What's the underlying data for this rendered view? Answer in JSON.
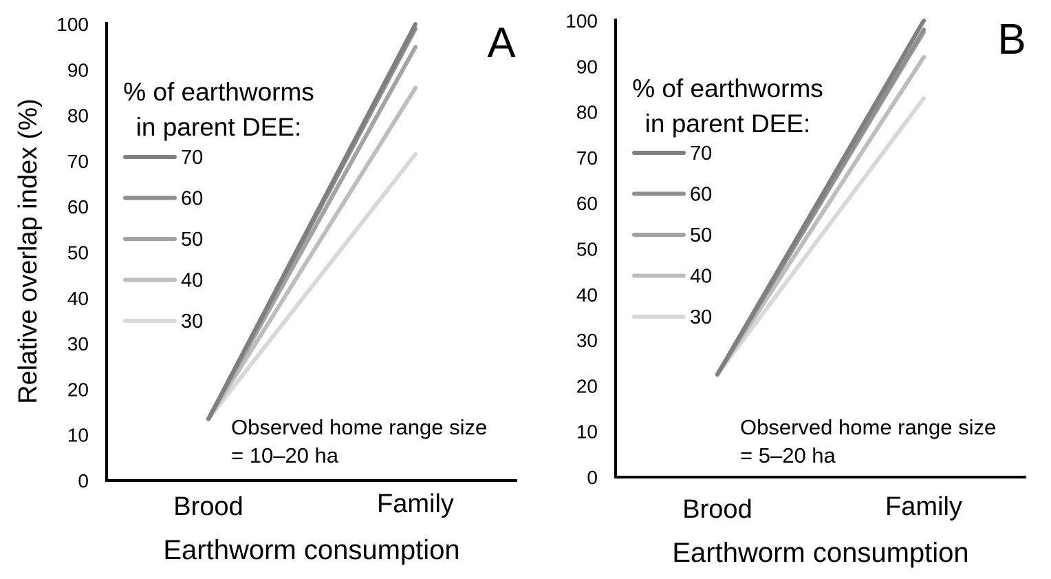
{
  "y_axis_label": "Relative overlap index (%)",
  "legend_title_line1": "% of earthworms",
  "legend_title_line2": "in parent DEE:",
  "chart_data": [
    {
      "type": "line",
      "panel_label": "A",
      "categories": [
        "Brood",
        "Family"
      ],
      "xlabel": "Earthworm consumption",
      "ylabel": "Relative overlap index (%)",
      "ylim": [
        0,
        100
      ],
      "yticks": [
        0,
        10,
        20,
        30,
        40,
        50,
        60,
        70,
        80,
        90,
        100
      ],
      "legend_title": "% of earthworms in parent DEE:",
      "legend_placement": "top-left",
      "annotation_line1": "Observed home range size",
      "annotation_line2": "= 10–20 ha",
      "series": [
        {
          "name": "70",
          "color": "#7f7f7f",
          "values": [
            13.5,
            100
          ]
        },
        {
          "name": "60",
          "color": "#8f8f8f",
          "values": [
            13.5,
            99
          ]
        },
        {
          "name": "50",
          "color": "#a3a3a3",
          "values": [
            13.5,
            95
          ]
        },
        {
          "name": "40",
          "color": "#bdbdbd",
          "values": [
            13.5,
            86
          ]
        },
        {
          "name": "30",
          "color": "#d8d8d8",
          "values": [
            13.5,
            71.5
          ]
        }
      ]
    },
    {
      "type": "line",
      "panel_label": "B",
      "categories": [
        "Brood",
        "Family"
      ],
      "xlabel": "Earthworm consumption",
      "ylabel": "",
      "ylim": [
        0,
        100
      ],
      "yticks": [
        0,
        10,
        20,
        30,
        40,
        50,
        60,
        70,
        80,
        90,
        100
      ],
      "legend_title": "% of earthworms in parent DEE:",
      "legend_placement": "top-left",
      "annotation_line1": "Observed home range size",
      "annotation_line2": "= 5–20 ha",
      "series": [
        {
          "name": "70",
          "color": "#7f7f7f",
          "values": [
            22.5,
            100
          ]
        },
        {
          "name": "60",
          "color": "#8f8f8f",
          "values": [
            22.5,
            98
          ]
        },
        {
          "name": "50",
          "color": "#a3a3a3",
          "values": [
            22.5,
            97.5
          ]
        },
        {
          "name": "40",
          "color": "#bdbdbd",
          "values": [
            22.5,
            92
          ]
        },
        {
          "name": "30",
          "color": "#d8d8d8",
          "values": [
            22.5,
            83
          ]
        }
      ]
    }
  ]
}
